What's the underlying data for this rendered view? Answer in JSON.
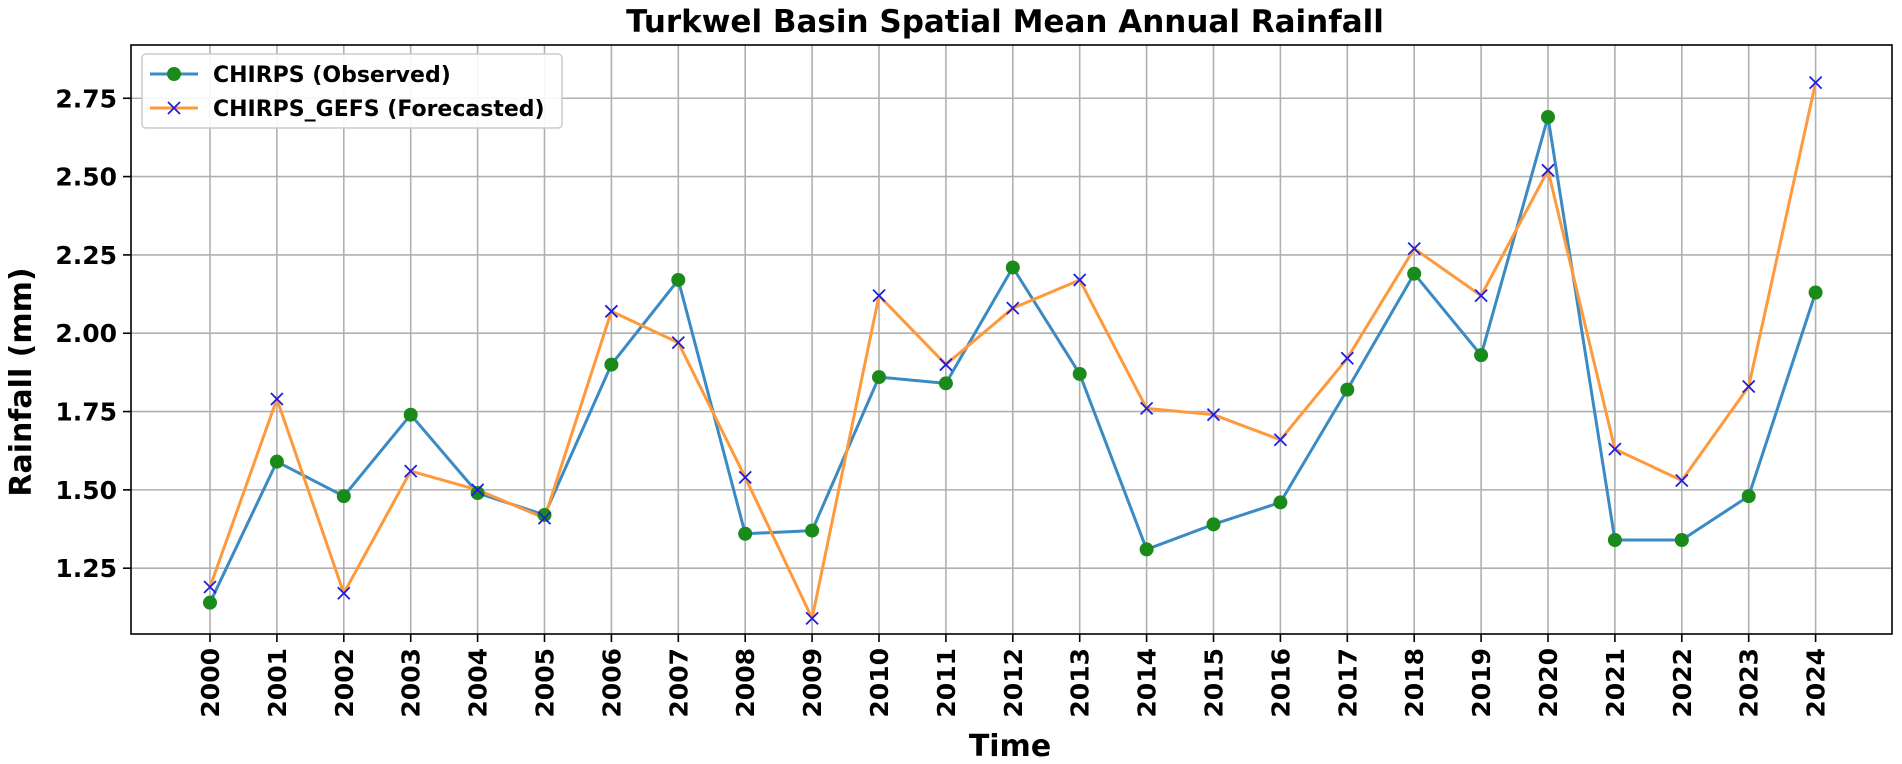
{
  "chart_data": {
    "type": "line",
    "title": "Turkwel Basin Spatial Mean Annual Rainfall",
    "xlabel": "Time",
    "ylabel": "Rainfall (mm)",
    "x": [
      "2000",
      "2001",
      "2002",
      "2003",
      "2004",
      "2005",
      "2006",
      "2007",
      "2008",
      "2009",
      "2010",
      "2011",
      "2012",
      "2013",
      "2014",
      "2015",
      "2016",
      "2017",
      "2018",
      "2019",
      "2020",
      "2021",
      "2022",
      "2023",
      "2024"
    ],
    "yticks": [
      "1.25",
      "1.50",
      "1.75",
      "2.00",
      "2.25",
      "2.50",
      "2.75"
    ],
    "ylim": [
      1.04,
      2.92
    ],
    "grid": true,
    "legend_position": "top-left",
    "series": [
      {
        "name": "CHIRPS (Observed)",
        "line_color": "#3a8bc4",
        "marker": "circle",
        "marker_color": "#1a8a1a",
        "values": [
          1.14,
          1.59,
          1.48,
          1.74,
          1.49,
          1.42,
          1.9,
          2.17,
          1.36,
          1.37,
          1.86,
          1.84,
          2.21,
          1.87,
          1.31,
          1.39,
          1.46,
          1.82,
          2.19,
          1.93,
          2.69,
          1.34,
          1.34,
          1.48,
          2.13
        ]
      },
      {
        "name": "CHIRPS_GEFS (Forecasted)",
        "line_color": "#ff9a3c",
        "marker": "x",
        "marker_color": "#1f1fe0",
        "values": [
          1.19,
          1.79,
          1.17,
          1.56,
          1.5,
          1.41,
          2.07,
          1.97,
          1.54,
          1.09,
          2.12,
          1.9,
          2.08,
          2.17,
          1.76,
          1.74,
          1.66,
          1.92,
          2.27,
          2.12,
          2.52,
          1.63,
          1.53,
          1.83,
          2.8
        ]
      }
    ]
  }
}
